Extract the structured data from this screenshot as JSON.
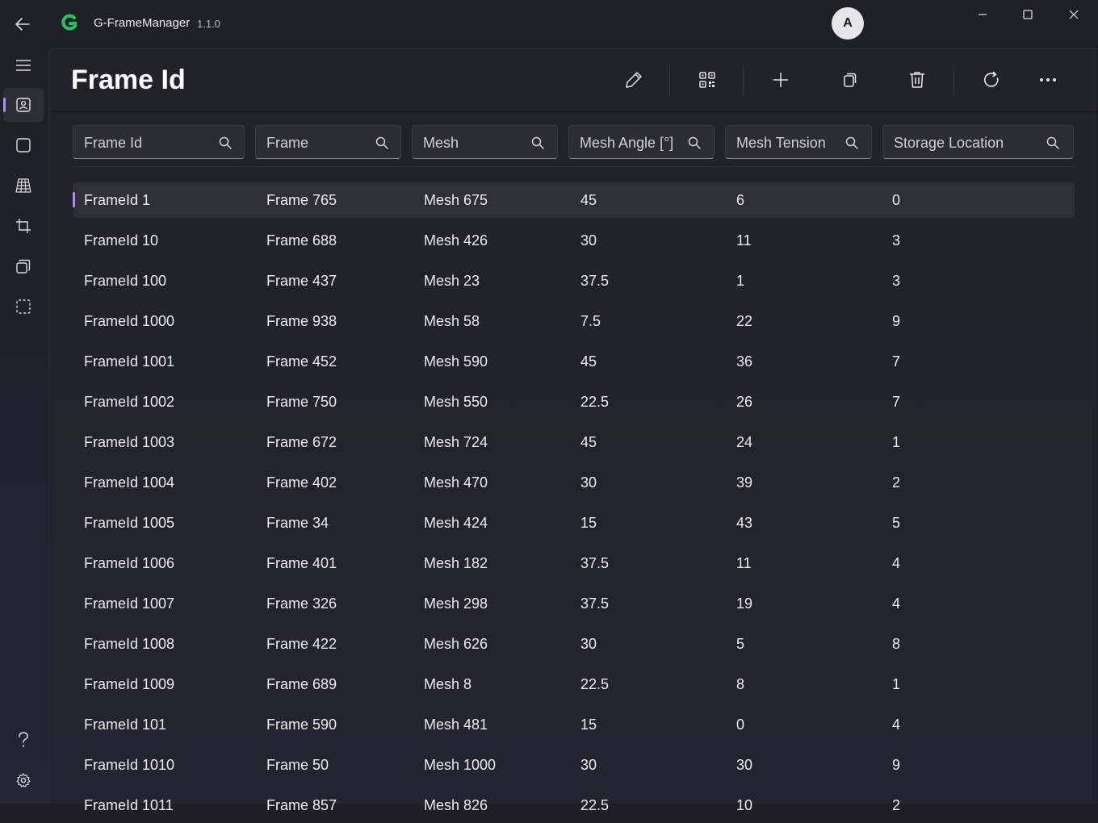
{
  "titlebar": {
    "app_name": "G-FrameManager",
    "version": "1.1.0",
    "avatar_initial": "A"
  },
  "colors": {
    "accent": "#b28cf2",
    "logo": "#22c55e",
    "background": "#202027"
  },
  "nav": {
    "items": [
      {
        "icon": "contact-card-icon",
        "active": true
      },
      {
        "icon": "square-frame-icon",
        "active": false
      },
      {
        "icon": "mesh-grid-icon",
        "active": false
      },
      {
        "icon": "crop-icon",
        "active": false
      },
      {
        "icon": "layers-icon",
        "active": false
      },
      {
        "icon": "dashed-select-icon",
        "active": false
      }
    ],
    "footer": [
      {
        "icon": "help-icon"
      },
      {
        "icon": "settings-gear-icon"
      }
    ]
  },
  "page": {
    "title": "Frame Id"
  },
  "toolbar": [
    {
      "icon": "edit-pencil-icon"
    },
    {
      "icon": "qr-code-icon"
    },
    {
      "icon": "add-icon"
    },
    {
      "icon": "copy-icon"
    },
    {
      "icon": "delete-trash-icon"
    },
    {
      "icon": "refresh-icon"
    },
    {
      "icon": "more-icon"
    }
  ],
  "filters": [
    {
      "label": "Frame Id"
    },
    {
      "label": "Frame"
    },
    {
      "label": "Mesh"
    },
    {
      "label": "Mesh Angle [°]"
    },
    {
      "label": "Mesh Tension"
    },
    {
      "label": "Storage Location"
    }
  ],
  "rows": [
    [
      "FrameId 1",
      "Frame 765",
      "Mesh 675",
      "45",
      "6",
      "0"
    ],
    [
      "FrameId 10",
      "Frame 688",
      "Mesh 426",
      "30",
      "11",
      "3"
    ],
    [
      "FrameId 100",
      "Frame 437",
      "Mesh 23",
      "37.5",
      "1",
      "3"
    ],
    [
      "FrameId 1000",
      "Frame 938",
      "Mesh 58",
      "7.5",
      "22",
      "9"
    ],
    [
      "FrameId 1001",
      "Frame 452",
      "Mesh 590",
      "45",
      "36",
      "7"
    ],
    [
      "FrameId 1002",
      "Frame 750",
      "Mesh 550",
      "22.5",
      "26",
      "7"
    ],
    [
      "FrameId 1003",
      "Frame 672",
      "Mesh 724",
      "45",
      "24",
      "1"
    ],
    [
      "FrameId 1004",
      "Frame 402",
      "Mesh 470",
      "30",
      "39",
      "2"
    ],
    [
      "FrameId 1005",
      "Frame 34",
      "Mesh 424",
      "15",
      "43",
      "5"
    ],
    [
      "FrameId 1006",
      "Frame 401",
      "Mesh 182",
      "37.5",
      "11",
      "4"
    ],
    [
      "FrameId 1007",
      "Frame 326",
      "Mesh 298",
      "37.5",
      "19",
      "4"
    ],
    [
      "FrameId 1008",
      "Frame 422",
      "Mesh 626",
      "30",
      "5",
      "8"
    ],
    [
      "FrameId 1009",
      "Frame 689",
      "Mesh 8",
      "22.5",
      "8",
      "1"
    ],
    [
      "FrameId 101",
      "Frame 590",
      "Mesh 481",
      "15",
      "0",
      "4"
    ],
    [
      "FrameId 1010",
      "Frame 50",
      "Mesh 1000",
      "30",
      "30",
      "9"
    ],
    [
      "FrameId 1011",
      "Frame 857",
      "Mesh 826",
      "22.5",
      "10",
      "2"
    ]
  ]
}
